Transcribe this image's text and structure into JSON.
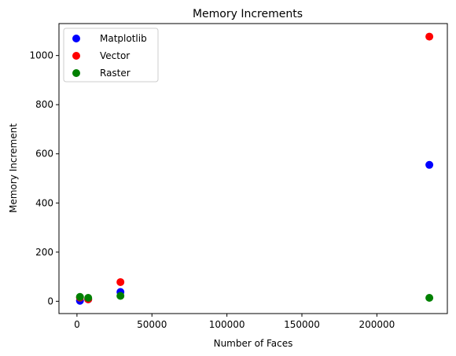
{
  "chart_data": {
    "type": "scatter",
    "title": "Memory Increments",
    "xlabel": "Number of Faces",
    "ylabel": "Memory Increment",
    "xlim": [
      -12000,
      247000
    ],
    "ylim": [
      -50,
      1130
    ],
    "xticks": [
      0,
      50000,
      100000,
      150000,
      200000
    ],
    "xtick_labels": [
      "0",
      "50000",
      "100000",
      "150000",
      "200000"
    ],
    "yticks": [
      0,
      200,
      400,
      600,
      800,
      1000
    ],
    "ytick_labels": [
      "0",
      "200",
      "400",
      "600",
      "800",
      "1000"
    ],
    "grid": false,
    "legend_position": "top-left",
    "series": [
      {
        "name": "Matplotlib",
        "color": "#0000ff",
        "x": [
          2000,
          7500,
          29000,
          235000
        ],
        "y": [
          2,
          8,
          38,
          555
        ]
      },
      {
        "name": "Vector",
        "color": "#ff0000",
        "x": [
          2000,
          7500,
          29000,
          235000
        ],
        "y": [
          15,
          8,
          78,
          1077
        ]
      },
      {
        "name": "Raster",
        "color": "#008000",
        "x": [
          2000,
          7500,
          29000,
          235000
        ],
        "y": [
          18,
          14,
          22,
          14
        ]
      }
    ]
  }
}
